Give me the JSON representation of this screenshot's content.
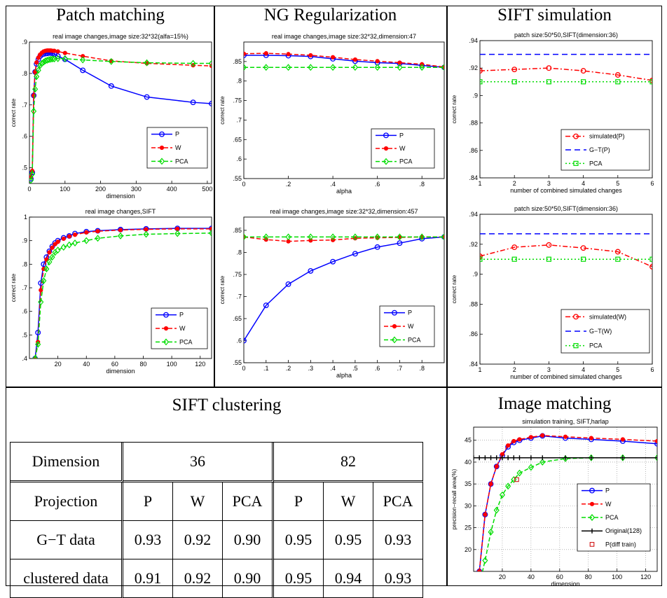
{
  "sections": {
    "patch": "Patch matching",
    "ng": "NG Regularization",
    "sift_sim": "SIFT simulation",
    "sift_clust": "SIFT clustering",
    "img_match": "Image matching"
  },
  "table": {
    "row_label_dimension": "Dimension",
    "dims": [
      "36",
      "82"
    ],
    "row_label_projection": "Projection",
    "projections": [
      "P",
      "W",
      "PCA",
      "P",
      "W",
      "PCA"
    ],
    "rows": [
      {
        "label": "G−T data",
        "values": [
          "0.93",
          "0.92",
          "0.90",
          "0.95",
          "0.95",
          "0.93"
        ]
      },
      {
        "label": "clustered data",
        "values": [
          "0.91",
          "0.92",
          "0.90",
          "0.95",
          "0.94",
          "0.93"
        ]
      }
    ]
  },
  "chart_data": [
    {
      "type": "line",
      "title": "real image changes,image size:32*32(alfa=15%)",
      "xlabel": "dimension",
      "ylabel": "correct rate",
      "xlim": [
        0,
        512
      ],
      "ylim": [
        0.45,
        0.9
      ],
      "xticks": [
        0,
        100,
        200,
        300,
        400,
        500
      ],
      "yticks": [
        0.5,
        0.6,
        0.7,
        0.8,
        0.9
      ],
      "legend": "lower-right",
      "series": [
        {
          "name": "P",
          "color": "#0000ff",
          "dash": "",
          "marker": "circle",
          "x": [
            4,
            8,
            12,
            16,
            20,
            25,
            30,
            35,
            40,
            45,
            50,
            55,
            60,
            65,
            70,
            80,
            100,
            150,
            230,
            330,
            460,
            512
          ],
          "y": [
            0.465,
            0.485,
            0.73,
            0.805,
            0.83,
            0.845,
            0.855,
            0.86,
            0.862,
            0.863,
            0.864,
            0.865,
            0.865,
            0.864,
            0.862,
            0.855,
            0.845,
            0.81,
            0.76,
            0.725,
            0.708,
            0.704
          ],
          "markers": [
            0,
            1,
            2,
            3,
            4,
            5,
            6,
            7,
            8,
            9,
            10,
            11,
            12,
            13,
            14,
            15,
            16,
            17,
            18,
            19,
            20
          ]
        },
        {
          "name": "W",
          "color": "#ff0000",
          "dash": "6 3",
          "marker": "dot",
          "x": [
            4,
            8,
            12,
            16,
            20,
            25,
            30,
            35,
            40,
            45,
            50,
            55,
            60,
            65,
            70,
            80,
            100,
            150,
            230,
            330,
            460,
            512
          ],
          "y": [
            0.47,
            0.49,
            0.73,
            0.805,
            0.835,
            0.85,
            0.86,
            0.866,
            0.87,
            0.872,
            0.873,
            0.873,
            0.873,
            0.872,
            0.872,
            0.87,
            0.865,
            0.855,
            0.84,
            0.832,
            0.826,
            0.824
          ],
          "markers": [
            0,
            1,
            2,
            3,
            4,
            5,
            6,
            7,
            8,
            9,
            10,
            11,
            12,
            13,
            14,
            15,
            16,
            17,
            18,
            19,
            20
          ]
        },
        {
          "name": "PCA",
          "color": "#00dd00",
          "dash": "6 3",
          "marker": "diamond",
          "x": [
            4,
            8,
            12,
            16,
            20,
            25,
            30,
            35,
            40,
            45,
            50,
            55,
            60,
            65,
            70,
            80,
            100,
            150,
            230,
            330,
            460,
            512
          ],
          "y": [
            0.46,
            0.48,
            0.68,
            0.75,
            0.79,
            0.81,
            0.825,
            0.832,
            0.836,
            0.84,
            0.842,
            0.844,
            0.845,
            0.846,
            0.846,
            0.847,
            0.847,
            0.843,
            0.838,
            0.834,
            0.832,
            0.832
          ],
          "markers": [
            0,
            1,
            2,
            3,
            4,
            5,
            6,
            7,
            8,
            9,
            10,
            11,
            12,
            13,
            14,
            15,
            16,
            17,
            18,
            19,
            20
          ]
        }
      ]
    },
    {
      "type": "line",
      "title": "real image changes,SIFT",
      "xlabel": "dimension",
      "ylabel": "correct rate",
      "xlim": [
        0,
        128
      ],
      "ylim": [
        0.4,
        1.0
      ],
      "xticks": [
        20,
        40,
        60,
        80,
        100,
        120
      ],
      "yticks": [
        0.4,
        0.5,
        0.6,
        0.7,
        0.8,
        0.9,
        1.0
      ],
      "legend": "lower-right",
      "series": [
        {
          "name": "P",
          "color": "#0000ff",
          "dash": "",
          "marker": "circle",
          "x": [
            4,
            6,
            8,
            10,
            12,
            14,
            16,
            18,
            20,
            24,
            28,
            32,
            40,
            48,
            64,
            82,
            104,
            128
          ],
          "y": [
            0.4,
            0.51,
            0.72,
            0.8,
            0.83,
            0.855,
            0.875,
            0.89,
            0.9,
            0.912,
            0.92,
            0.93,
            0.938,
            0.942,
            0.947,
            0.95,
            0.952,
            0.952
          ]
        },
        {
          "name": "W",
          "color": "#ff0000",
          "dash": "6 3",
          "marker": "dot",
          "x": [
            4,
            6,
            8,
            10,
            12,
            14,
            16,
            18,
            20,
            24,
            28,
            32,
            40,
            48,
            64,
            82,
            104,
            128
          ],
          "y": [
            0.4,
            0.47,
            0.69,
            0.78,
            0.82,
            0.85,
            0.87,
            0.885,
            0.895,
            0.908,
            0.918,
            0.925,
            0.935,
            0.94,
            0.945,
            0.948,
            0.95,
            0.95
          ]
        },
        {
          "name": "PCA",
          "color": "#00dd00",
          "dash": "6 3",
          "marker": "diamond",
          "x": [
            4,
            6,
            8,
            10,
            12,
            14,
            16,
            18,
            20,
            24,
            28,
            32,
            40,
            48,
            64,
            82,
            104,
            128
          ],
          "y": [
            0.4,
            0.46,
            0.64,
            0.73,
            0.78,
            0.81,
            0.83,
            0.85,
            0.86,
            0.872,
            0.882,
            0.89,
            0.9,
            0.91,
            0.92,
            0.927,
            0.93,
            0.932
          ]
        }
      ]
    },
    {
      "type": "line",
      "title": "real image changes,image size:32*32,dimension:47",
      "xlabel": "alpha",
      "ylabel": "correct rate",
      "xlim": [
        0,
        0.9
      ],
      "ylim": [
        0.55,
        0.9
      ],
      "xticks": [
        0,
        0.2,
        0.4,
        0.6,
        0.8
      ],
      "yticks": [
        0.55,
        0.6,
        0.65,
        0.7,
        0.75,
        0.8,
        0.85
      ],
      "legend": "lower-right",
      "series": [
        {
          "name": "P",
          "color": "#0000ff",
          "dash": "",
          "marker": "circle",
          "x": [
            0,
            0.1,
            0.2,
            0.3,
            0.4,
            0.5,
            0.6,
            0.7,
            0.8,
            0.9
          ],
          "y": [
            0.866,
            0.866,
            0.865,
            0.863,
            0.857,
            0.851,
            0.847,
            0.845,
            0.84,
            0.835
          ]
        },
        {
          "name": "W",
          "color": "#ff0000",
          "dash": "6 3",
          "marker": "dot",
          "x": [
            0,
            0.1,
            0.2,
            0.3,
            0.4,
            0.5,
            0.6,
            0.7,
            0.8,
            0.9
          ],
          "y": [
            0.87,
            0.871,
            0.869,
            0.866,
            0.861,
            0.855,
            0.851,
            0.847,
            0.843,
            0.836
          ]
        },
        {
          "name": "PCA",
          "color": "#00dd00",
          "dash": "6 3",
          "marker": "diamond",
          "x": [
            0,
            0.1,
            0.2,
            0.3,
            0.4,
            0.5,
            0.6,
            0.7,
            0.8,
            0.9
          ],
          "y": [
            0.835,
            0.835,
            0.835,
            0.835,
            0.835,
            0.835,
            0.835,
            0.835,
            0.835,
            0.835
          ]
        }
      ]
    },
    {
      "type": "line",
      "title": "real image changes,image size:32*32,dimension:457",
      "xlabel": "alpha",
      "ylabel": "correct rate",
      "xlim": [
        0,
        0.9
      ],
      "ylim": [
        0.55,
        0.88
      ],
      "xticks": [
        0,
        0.1,
        0.2,
        0.3,
        0.4,
        0.5,
        0.6,
        0.7,
        0.8
      ],
      "yticks": [
        0.55,
        0.6,
        0.65,
        0.7,
        0.75,
        0.8,
        0.85
      ],
      "legend": "lower-right",
      "series": [
        {
          "name": "P",
          "color": "#0000ff",
          "dash": "",
          "marker": "circle",
          "x": [
            0,
            0.1,
            0.2,
            0.3,
            0.4,
            0.5,
            0.6,
            0.7,
            0.8,
            0.9
          ],
          "y": [
            0.6,
            0.68,
            0.728,
            0.758,
            0.779,
            0.797,
            0.812,
            0.821,
            0.831,
            0.835
          ]
        },
        {
          "name": "W",
          "color": "#ff0000",
          "dash": "6 3",
          "marker": "dot",
          "x": [
            0,
            0.1,
            0.2,
            0.3,
            0.4,
            0.5,
            0.6,
            0.7,
            0.8,
            0.9
          ],
          "y": [
            0.835,
            0.829,
            0.825,
            0.827,
            0.828,
            0.832,
            0.833,
            0.834,
            0.835,
            0.835
          ]
        },
        {
          "name": "PCA",
          "color": "#00dd00",
          "dash": "6 3",
          "marker": "diamond",
          "x": [
            0,
            0.1,
            0.2,
            0.3,
            0.4,
            0.5,
            0.6,
            0.7,
            0.8,
            0.9
          ],
          "y": [
            0.835,
            0.835,
            0.835,
            0.835,
            0.835,
            0.835,
            0.835,
            0.835,
            0.835,
            0.835
          ]
        }
      ]
    },
    {
      "type": "line",
      "title": "patch size:50*50,SIFT(dimension:36)",
      "xlabel": "number of combined simulated changes",
      "ylabel": "correct rate",
      "xlim": [
        1,
        6
      ],
      "ylim": [
        0.84,
        0.94
      ],
      "xticks": [
        1,
        2,
        3,
        4,
        5,
        6
      ],
      "yticks": [
        0.84,
        0.86,
        0.88,
        0.9,
        0.92,
        0.94
      ],
      "legend": "lower-right",
      "series": [
        {
          "name": "simulated(P)",
          "color": "#ff0000",
          "dash": "7 3 2 3",
          "marker": "circle",
          "x": [
            1,
            2,
            3,
            4,
            5,
            6
          ],
          "y": [
            0.918,
            0.919,
            0.92,
            0.918,
            0.915,
            0.911
          ]
        },
        {
          "name": "G−T(P)",
          "color": "#0000ff",
          "dash": "8 5",
          "marker": "none",
          "x": [
            1,
            6
          ],
          "y": [
            0.93,
            0.93
          ]
        },
        {
          "name": "PCA",
          "color": "#00dd00",
          "dash": "2 3",
          "marker": "square",
          "x": [
            1,
            2,
            3,
            4,
            5,
            6
          ],
          "y": [
            0.91,
            0.91,
            0.91,
            0.91,
            0.91,
            0.91
          ]
        }
      ]
    },
    {
      "type": "line",
      "title": "patch size:50*50,SIFT(dimension:36)",
      "xlabel": "number of combined simulated changes",
      "ylabel": "correct rate",
      "xlim": [
        1,
        6
      ],
      "ylim": [
        0.84,
        0.94
      ],
      "xticks": [
        1,
        2,
        3,
        4,
        5,
        6
      ],
      "yticks": [
        0.84,
        0.86,
        0.88,
        0.9,
        0.92,
        0.94
      ],
      "legend": "lower-right",
      "series": [
        {
          "name": "simulated(W)",
          "color": "#ff0000",
          "dash": "7 3 2 3",
          "marker": "circle",
          "x": [
            1,
            2,
            3,
            4,
            5,
            6
          ],
          "y": [
            0.912,
            0.918,
            0.9195,
            0.9175,
            0.915,
            0.905
          ]
        },
        {
          "name": "G−T(W)",
          "color": "#0000ff",
          "dash": "8 5",
          "marker": "none",
          "x": [
            1,
            6
          ],
          "y": [
            0.927,
            0.927
          ]
        },
        {
          "name": "PCA",
          "color": "#00dd00",
          "dash": "2 3",
          "marker": "square",
          "x": [
            1,
            2,
            3,
            4,
            5,
            6
          ],
          "y": [
            0.91,
            0.91,
            0.91,
            0.91,
            0.91,
            0.91
          ]
        }
      ]
    },
    {
      "type": "line",
      "title": "simulation training, SIFT,harlap",
      "xlabel": "dimension",
      "ylabel": "precision−recall area(%)",
      "xlim": [
        0,
        128
      ],
      "ylim": [
        15,
        48
      ],
      "xticks": [
        20,
        40,
        60,
        80,
        100,
        120
      ],
      "yticks": [
        20,
        25,
        30,
        35,
        40,
        45
      ],
      "grid": true,
      "legend": "lower-right",
      "series": [
        {
          "name": "P",
          "color": "#0000ff",
          "dash": "",
          "marker": "circle",
          "x": [
            4,
            8,
            12,
            16,
            20,
            24,
            28,
            32,
            40,
            48,
            64,
            82,
            104,
            128
          ],
          "y": [
            15,
            28,
            35,
            39,
            41.5,
            43.5,
            44.5,
            45,
            45.5,
            46,
            45.5,
            45.2,
            44.8,
            44.2
          ]
        },
        {
          "name": "W",
          "color": "#ff0000",
          "dash": "6 3",
          "marker": "dot",
          "x": [
            4,
            8,
            12,
            16,
            20,
            24,
            28,
            32,
            40,
            48,
            64,
            82,
            104,
            128
          ],
          "y": [
            15,
            28,
            35,
            39,
            41.8,
            43.8,
            44.8,
            45.2,
            45.7,
            46.1,
            45.8,
            45.5,
            45.2,
            44.8
          ]
        },
        {
          "name": "PCA",
          "color": "#00dd00",
          "dash": "6 3",
          "marker": "diamond",
          "x": [
            4,
            8,
            12,
            16,
            20,
            24,
            28,
            32,
            40,
            48,
            64,
            82,
            104,
            128
          ],
          "y": [
            12,
            17.5,
            24,
            29,
            32.5,
            34.5,
            36,
            37.5,
            38.8,
            40,
            40.8,
            41,
            41,
            41
          ]
        },
        {
          "name": "Original(128)",
          "color": "#000000",
          "dash": "",
          "marker": "plus",
          "x": [
            0,
            4,
            8,
            12,
            16,
            20,
            24,
            28,
            32,
            40,
            48,
            64,
            82,
            104,
            128
          ],
          "y": [
            41,
            41,
            41,
            41,
            41,
            41,
            41,
            41,
            41,
            41,
            41,
            41,
            41,
            41,
            41
          ]
        },
        {
          "name": "P(diff train)",
          "color": "#cc0000",
          "dash": "",
          "marker": "opensquare",
          "nolines": true,
          "x": [
            30
          ],
          "y": [
            36
          ]
        }
      ]
    }
  ]
}
